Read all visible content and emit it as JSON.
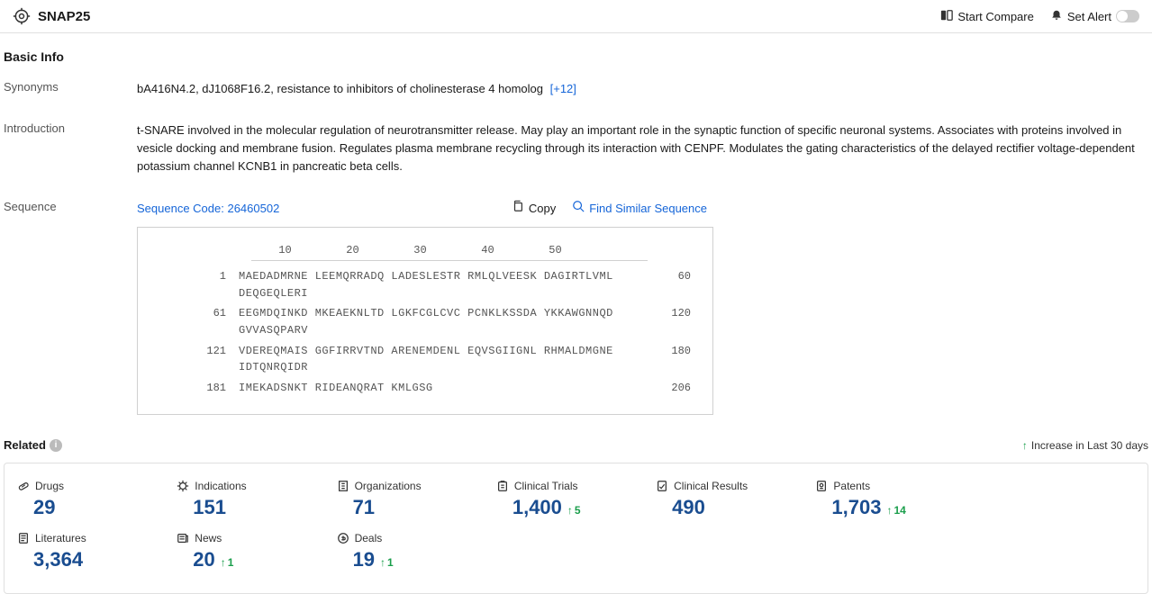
{
  "header": {
    "title": "SNAP25",
    "compare_label": "Start Compare",
    "alert_label": "Set Alert"
  },
  "basic_info": {
    "section_title": "Basic Info",
    "synonyms_label": "Synonyms",
    "synonyms": [
      "bA416N4.2",
      "dJ1068F16.2",
      "resistance to inhibitors of cholinesterase 4 homolog"
    ],
    "synonyms_more": "[+12]",
    "intro_label": "Introduction",
    "intro_text": "t-SNARE involved in the molecular regulation of neurotransmitter release. May play an important role in the synaptic function of specific neuronal systems. Associates with proteins involved in vesicle docking and membrane fusion. Regulates plasma membrane recycling through its interaction with CENPF. Modulates the gating characteristics of the delayed rectifier voltage-dependent potassium channel KCNB1 in pancreatic beta cells.",
    "sequence_label": "Sequence",
    "sequence_code_prefix": "Sequence Code: ",
    "sequence_code": "26460502",
    "copy_label": "Copy",
    "find_similar_label": "Find Similar Sequence",
    "ruler": [
      "10",
      "20",
      "30",
      "40",
      "50"
    ],
    "sequence_lines": [
      {
        "start": "1",
        "seq": "MAEDADMRNE LEEMQRRADQ LADESLESTR RMLQLVEESK DAGIRTLVML DEQGEQLERI",
        "end": "60"
      },
      {
        "start": "61",
        "seq": "EEGMDQINKD MKEAEKNLTD LGKFCGLCVC PCNKLKSSDA YKKAWGNNQD GVVASQPARV",
        "end": "120"
      },
      {
        "start": "121",
        "seq": "VDEREQMAIS GGFIRRVTND ARENEMDENL EQVSGIIGNL RHMALDMGNE IDTQNRQIDR",
        "end": "180"
      },
      {
        "start": "181",
        "seq": "IMEKADSNKT RIDEANQRAT KMLGSG",
        "end": "206"
      }
    ]
  },
  "related": {
    "title": "Related",
    "increase_note": "Increase in Last 30 days",
    "stats": [
      {
        "icon": "pill",
        "label": "Drugs",
        "value": "29",
        "delta": null
      },
      {
        "icon": "virus",
        "label": "Indications",
        "value": "151",
        "delta": null
      },
      {
        "icon": "org",
        "label": "Organizations",
        "value": "71",
        "delta": null
      },
      {
        "icon": "trial",
        "label": "Clinical Trials",
        "value": "1,400",
        "delta": "5"
      },
      {
        "icon": "result",
        "label": "Clinical Results",
        "value": "490",
        "delta": null
      },
      {
        "icon": "patent",
        "label": "Patents",
        "value": "1,703",
        "delta": "14"
      },
      {
        "icon": "blank",
        "label": "",
        "value": "",
        "delta": null
      },
      {
        "icon": "lit",
        "label": "Literatures",
        "value": "3,364",
        "delta": null
      },
      {
        "icon": "news",
        "label": "News",
        "value": "20",
        "delta": "1"
      },
      {
        "icon": "deal",
        "label": "Deals",
        "value": "19",
        "delta": "1"
      }
    ]
  },
  "colors": {
    "link": "#1565d8",
    "stat_value": "#1a4d90",
    "up": "#1a9e4b",
    "border": "#e0e0e0"
  }
}
